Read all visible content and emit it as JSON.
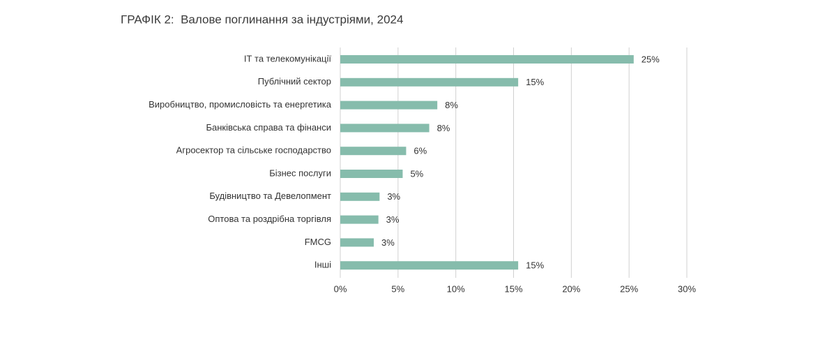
{
  "chart_data": {
    "type": "hbar",
    "title": "ГРАФІК 2:  Валове поглинання за індустріями, 2024",
    "categories": [
      "ІТ та телекомунікації",
      "Публічний сектор",
      "Виробництво, промисловість та енергетика",
      "Банківська справа та фінанси",
      "Агросектор та сільське господарство",
      "Бізнес послуги",
      "Будівництво та Девелопмент",
      "Оптова та роздрібна торгівля",
      "FMCG",
      "Інші"
    ],
    "values": [
      25.4,
      15.4,
      8.4,
      7.7,
      5.7,
      5.4,
      3.4,
      3.3,
      2.9,
      15.4
    ],
    "value_labels": [
      "25%",
      "15%",
      "8%",
      "8%",
      "6%",
      "5%",
      "3%",
      "3%",
      "3%",
      "15%"
    ],
    "color": "#86bcac",
    "xlim": [
      0,
      30
    ],
    "xticks": [
      {
        "value": 0,
        "label": "0%"
      },
      {
        "value": 5,
        "label": "5%"
      },
      {
        "value": 10,
        "label": "10%"
      },
      {
        "value": 15,
        "label": "15%"
      },
      {
        "value": 20,
        "label": "20%"
      },
      {
        "value": 25,
        "label": "25%"
      },
      {
        "value": 30,
        "label": "30%"
      }
    ],
    "grid": true
  }
}
